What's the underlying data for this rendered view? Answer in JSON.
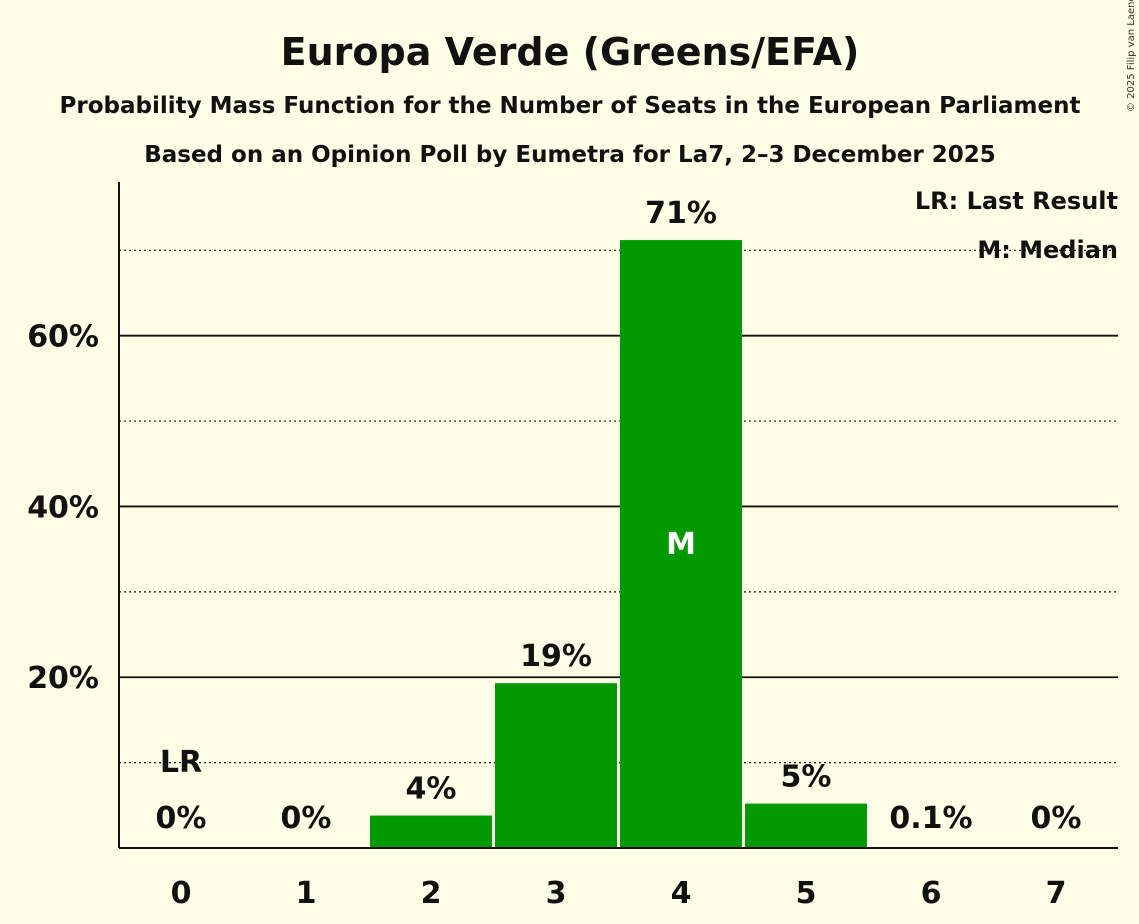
{
  "chart_data": {
    "type": "bar",
    "title": "Europa Verde (Greens/EFA)",
    "subtitle": "Probability Mass Function for the Number of Seats in the European Parliament",
    "source": "Based on an Opinion Poll by Eumetra for La7, 2–3 December 2025",
    "copyright": "© 2025 Filip van Laenen",
    "categories": [
      "0",
      "1",
      "2",
      "3",
      "4",
      "5",
      "6",
      "7"
    ],
    "values": [
      0,
      0,
      3.8,
      19.3,
      71.2,
      5.2,
      0.1,
      0
    ],
    "value_labels": [
      "0%",
      "0%",
      "4%",
      "19%",
      "71%",
      "5%",
      "0.1%",
      "0%"
    ],
    "ylim": [
      0,
      78
    ],
    "y_major_ticks": [
      20,
      40,
      60
    ],
    "y_major_tick_labels": [
      "20%",
      "40%",
      "60%"
    ],
    "y_minor_gridlines": [
      10,
      30,
      50,
      70
    ],
    "last_result_seat": 0,
    "last_result_marker": "LR",
    "median_seat": 4,
    "median_marker": "M",
    "legend": [
      "LR: Last Result",
      "M: Median"
    ],
    "bar_color": "#009900",
    "background_color": "#FEFDE5"
  }
}
